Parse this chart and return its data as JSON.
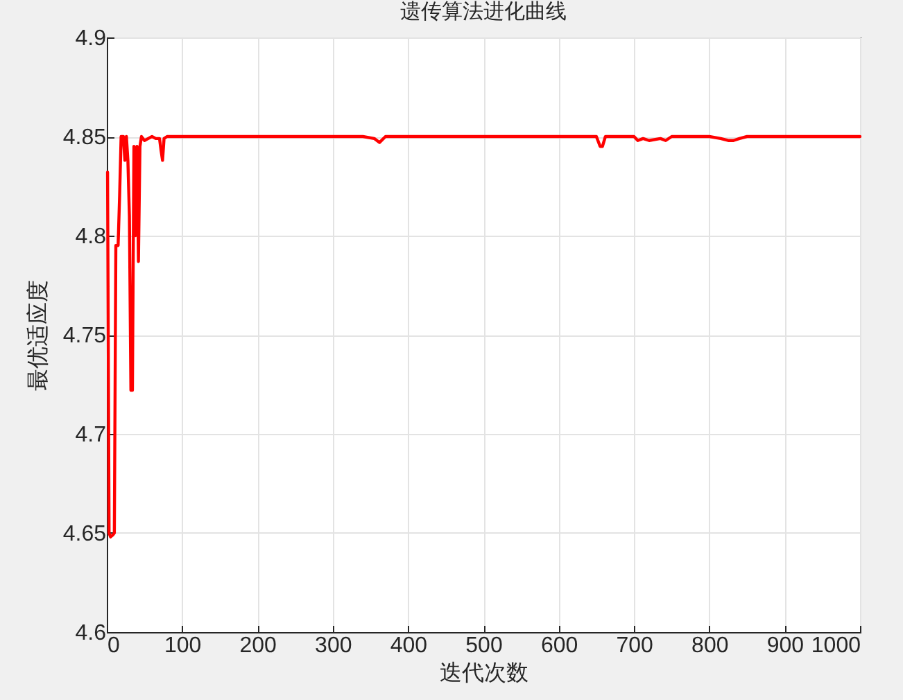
{
  "chart_data": {
    "type": "line",
    "title": "遗传算法进化曲线",
    "xlabel": "迭代次数",
    "ylabel": "最优适应度",
    "xlim": [
      0,
      1000
    ],
    "xticks": [
      0,
      100,
      200,
      300,
      400,
      500,
      600,
      700,
      800,
      900,
      1000
    ],
    "ylim": [
      4.6,
      4.9
    ],
    "yticks": [
      4.6,
      4.65,
      4.7,
      4.75,
      4.8,
      4.85,
      4.9
    ],
    "grid": true,
    "marker": "none",
    "line_style": "solid",
    "series": [
      {
        "color": "#ff0000",
        "x": [
          1,
          3,
          5,
          8,
          10,
          12,
          15,
          17,
          19,
          22,
          24,
          26,
          28,
          30,
          32,
          34,
          36,
          38,
          40,
          42,
          44,
          46,
          50,
          55,
          60,
          65,
          70,
          72,
          74,
          76,
          80,
          150,
          250,
          340,
          355,
          362,
          370,
          400,
          500,
          600,
          650,
          655,
          658,
          662,
          700,
          705,
          712,
          720,
          735,
          742,
          750,
          800,
          815,
          825,
          832,
          840,
          850,
          900,
          950,
          1000
        ],
        "values": [
          4.832,
          4.65,
          4.648,
          4.649,
          4.65,
          4.795,
          4.795,
          4.82,
          4.85,
          4.85,
          4.838,
          4.85,
          4.838,
          4.81,
          4.722,
          4.722,
          4.845,
          4.8,
          4.845,
          4.787,
          4.845,
          4.85,
          4.848,
          4.849,
          4.85,
          4.849,
          4.849,
          4.843,
          4.838,
          4.849,
          4.85,
          4.85,
          4.85,
          4.85,
          4.849,
          4.847,
          4.85,
          4.85,
          4.85,
          4.85,
          4.85,
          4.845,
          4.845,
          4.85,
          4.85,
          4.848,
          4.849,
          4.848,
          4.849,
          4.848,
          4.85,
          4.85,
          4.849,
          4.848,
          4.848,
          4.849,
          4.85,
          4.85,
          4.85,
          4.85
        ]
      }
    ]
  }
}
